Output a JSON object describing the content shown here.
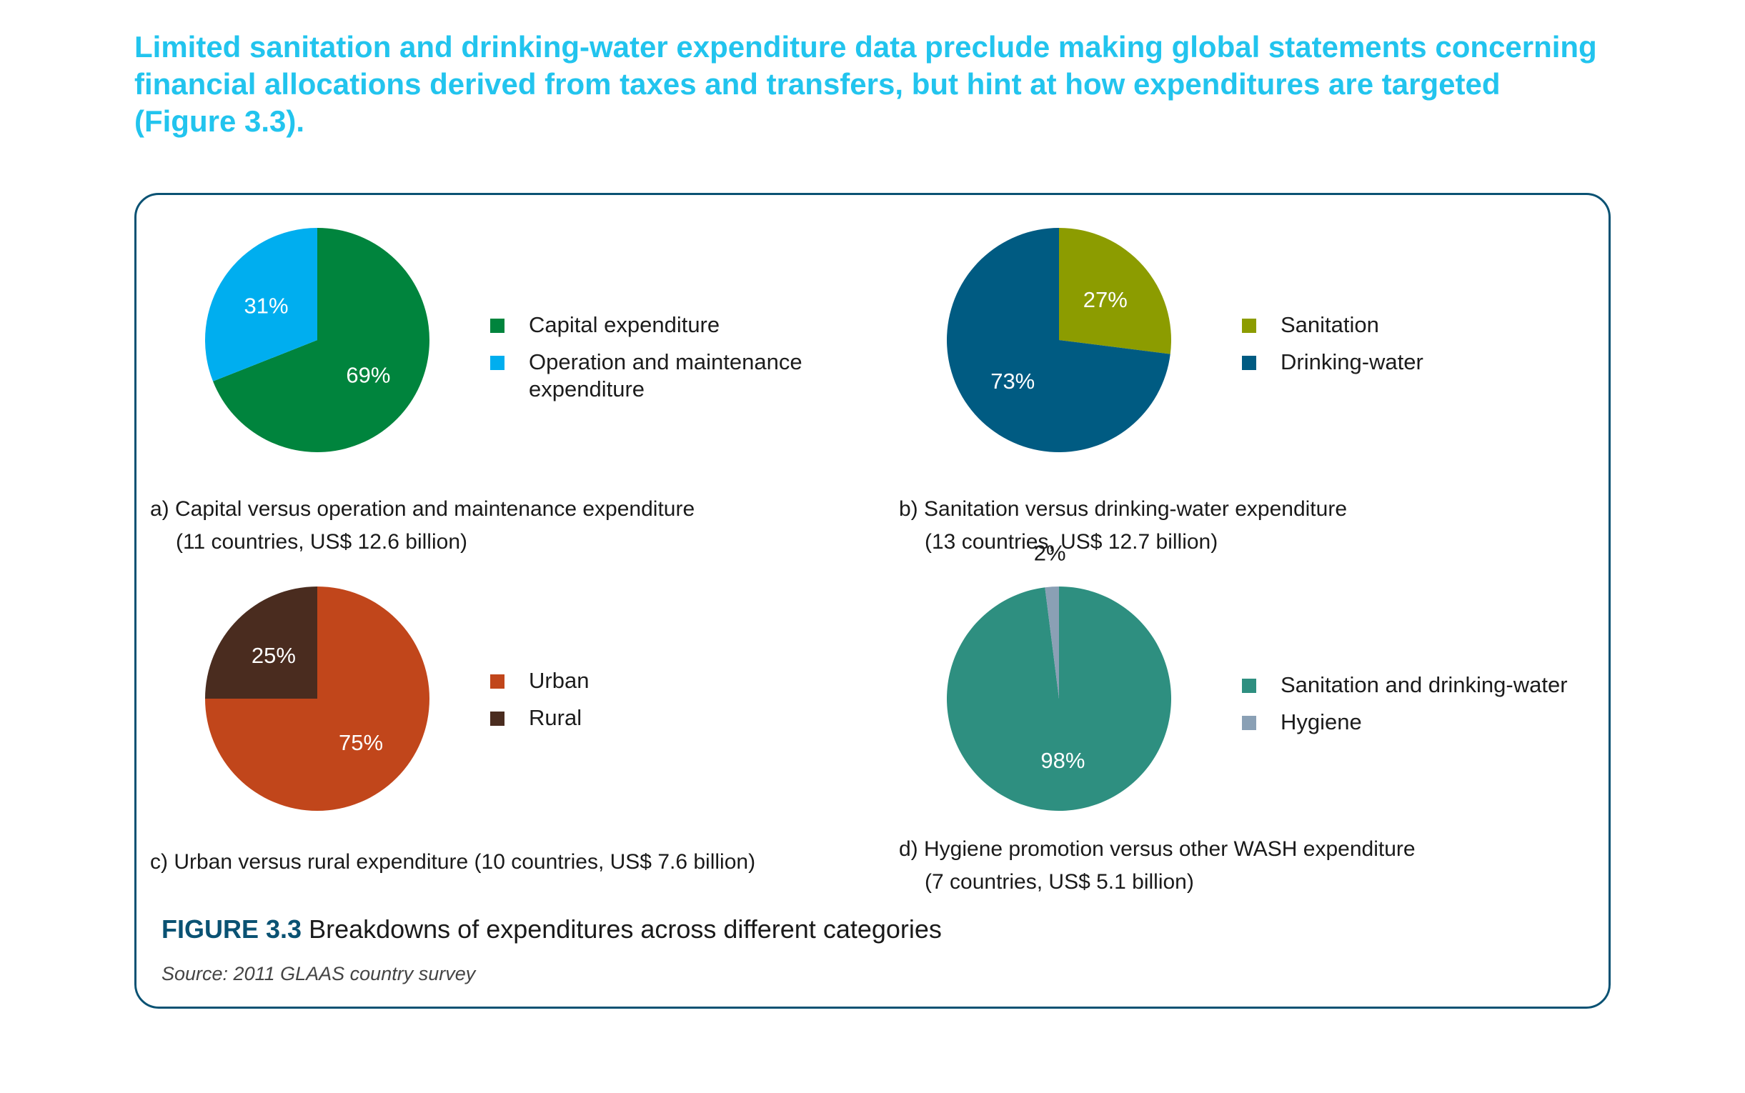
{
  "heading": "Limited sanitation and drinking-water expenditure data preclude making global statements concerning financial allocations derived from taxes and transfers, but hint at how expenditures are targeted (Figure 3.3).",
  "figure": {
    "label": "FIGURE 3.3",
    "title": "Breakdowns of expenditures across different categories",
    "source": "Source: 2011 GLAAS country survey"
  },
  "colors": {
    "heading": "#22c4ee",
    "frame": "#0a5273",
    "capital": "#00843d",
    "om": "#00aeef",
    "sanitation": "#8c9c00",
    "drinking_water": "#005b82",
    "urban": "#c1461b",
    "rural": "#4a2c1f",
    "san_dw": "#2e8f80",
    "hygiene": "#8aa0b5"
  },
  "chart_data": [
    {
      "type": "pie",
      "caption": "a) Capital versus operation and maintenance expenditure",
      "caption_sub": "(11 countries, US$ 12.6 billion)",
      "labels": [
        "Capital expenditure",
        "Operation and maintenance expenditure"
      ],
      "legend_lines": [
        [
          "Capital expenditure"
        ],
        [
          "Operation and maintenance",
          "expenditure"
        ]
      ],
      "values": [
        69,
        31
      ],
      "value_labels": [
        "69%",
        "31%"
      ],
      "colors": [
        "#00843d",
        "#00aeef"
      ]
    },
    {
      "type": "pie",
      "caption": "b) Sanitation versus drinking-water expenditure",
      "caption_sub": "(13 countries, US$ 12.7 billion)",
      "labels": [
        "Sanitation",
        "Drinking-water"
      ],
      "legend_lines": [
        [
          "Sanitation"
        ],
        [
          "Drinking-water"
        ]
      ],
      "values": [
        27,
        73
      ],
      "value_labels": [
        "27%",
        "73%"
      ],
      "colors": [
        "#8c9c00",
        "#005b82"
      ]
    },
    {
      "type": "pie",
      "caption": "c) Urban versus rural expenditure (10 countries, US$ 7.6 billion)",
      "caption_sub": "",
      "labels": [
        "Urban",
        "Rural"
      ],
      "legend_lines": [
        [
          "Urban"
        ],
        [
          "Rural"
        ]
      ],
      "values": [
        75,
        25
      ],
      "value_labels": [
        "75%",
        "25%"
      ],
      "colors": [
        "#c1461b",
        "#4a2c1f"
      ]
    },
    {
      "type": "pie",
      "caption": "d) Hygiene promotion versus other WASH expenditure",
      "caption_sub": "(7 countries, US$ 5.1 billion)",
      "labels": [
        "Sanitation and drinking-water",
        "Hygiene"
      ],
      "legend_lines": [
        [
          "Sanitation and drinking-water"
        ],
        [
          "Hygiene"
        ]
      ],
      "values": [
        98,
        2
      ],
      "value_labels": [
        "98%",
        "2%"
      ],
      "colors": [
        "#2e8f80",
        "#8aa0b5"
      ]
    }
  ]
}
